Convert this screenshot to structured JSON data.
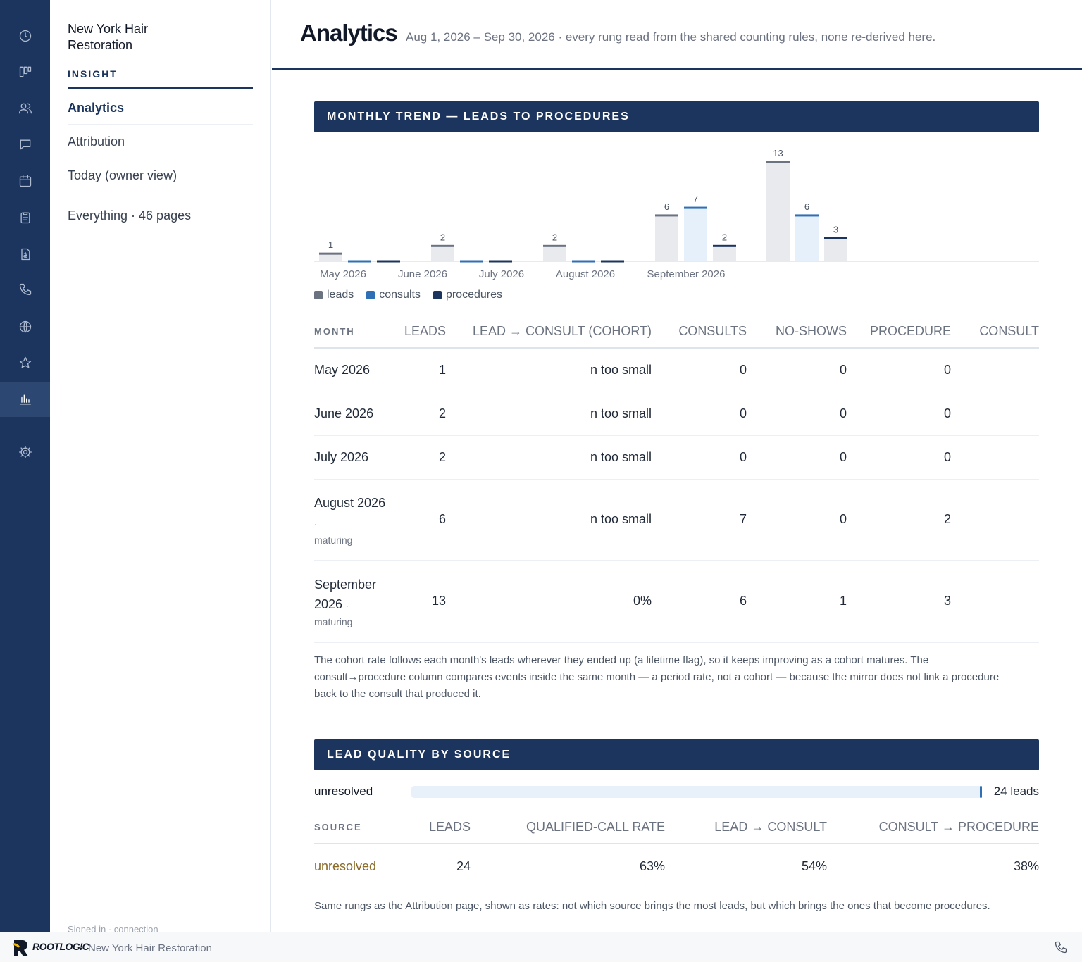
{
  "rail": {
    "items": [
      {
        "icon": "clock-icon"
      },
      {
        "icon": "kanban-icon"
      },
      {
        "icon": "users-icon"
      },
      {
        "icon": "chat-icon"
      },
      {
        "icon": "calendar-icon"
      },
      {
        "icon": "clipboard-icon"
      },
      {
        "icon": "invoice-icon"
      },
      {
        "icon": "phone-icon"
      },
      {
        "icon": "globe-icon"
      },
      {
        "icon": "star-icon"
      },
      {
        "icon": "bar-chart-icon",
        "active": true
      },
      {
        "icon": "gear-icon"
      }
    ]
  },
  "sidebar": {
    "clinic_name": "New York Hair Restoration",
    "section_label": "INSIGHT",
    "items": [
      {
        "label": "Analytics",
        "active": true
      },
      {
        "label": "Attribution"
      },
      {
        "label": "Today (owner view)"
      }
    ],
    "everything_link": "Everything · 46 pages",
    "footer_text": "Signed in · connection"
  },
  "header": {
    "title": "Analytics",
    "subtitle": "Aug 1, 2026 – Sep 30, 2026 · every rung read from the shared counting rules, none re-derived here."
  },
  "trend": {
    "banner": "MONTHLY TREND — LEADS TO PROCEDURES",
    "columns": [
      "MONTH",
      "LEADS",
      "LEAD → CONSULT (COHORT)",
      "CONSULTS",
      "NO-SHOWS",
      "PROCEDURE",
      "CONSULT"
    ],
    "rows": [
      {
        "month": "May 2026",
        "maturing": "",
        "leads": "1",
        "cohort": "n too small",
        "consults": "0",
        "noshows": "0",
        "procedure": "0",
        "consult": ""
      },
      {
        "month": "June 2026",
        "maturing": "",
        "leads": "2",
        "cohort": "n too small",
        "consults": "0",
        "noshows": "0",
        "procedure": "0",
        "consult": ""
      },
      {
        "month": "July 2026",
        "maturing": "",
        "leads": "2",
        "cohort": "n too small",
        "consults": "0",
        "noshows": "0",
        "procedure": "0",
        "consult": ""
      },
      {
        "month": "August 2026",
        "maturing": "maturing",
        "leads": "6",
        "cohort": "n too small",
        "consults": "7",
        "noshows": "0",
        "procedure": "2",
        "consult": ""
      },
      {
        "month": "September 2026",
        "maturing": "maturing",
        "leads": "13",
        "cohort": "0%",
        "consults": "6",
        "noshows": "1",
        "procedure": "3",
        "consult": ""
      }
    ],
    "note": "The cohort rate follows each month's leads wherever they ended up (a lifetime flag), so it keeps improving as a cohort matures. The consult→procedure column compares events inside the same month — a period rate, not a cohort — because the mirror does not link a procedure back to the consult that produced it."
  },
  "chart_data": {
    "type": "bar",
    "categories": [
      "May 2026",
      "June 2026",
      "July 2026",
      "August 2026",
      "September 2026"
    ],
    "series": [
      {
        "name": "leads",
        "values": [
          1,
          2,
          2,
          6,
          13
        ],
        "color": "#6b7280"
      },
      {
        "name": "consults",
        "values": [
          0,
          0,
          0,
          7,
          6
        ],
        "color": "#2e6fb5"
      },
      {
        "name": "procedures",
        "values": [
          0,
          0,
          0,
          2,
          3
        ],
        "color": "#1c355e"
      }
    ],
    "ylim": [
      0,
      13
    ],
    "legend": "bottom-left",
    "grid": false
  },
  "quality": {
    "banner": "LEAD QUALITY BY SOURCE",
    "bar_label": "unresolved",
    "bar_fraction": 1.0,
    "bar_count": "24 leads",
    "columns": [
      "SOURCE",
      "LEADS",
      "QUALIFIED-CALL RATE",
      "LEAD → CONSULT",
      "CONSULT → PROCEDURE"
    ],
    "rows": [
      {
        "source": "unresolved",
        "leads": "24",
        "qualified": "63%",
        "consult": "54%",
        "procedure": "38%"
      }
    ],
    "note": "Same rungs as the Attribution page, shown as rates: not which source brings the most leads, but which brings the ones that become procedures."
  },
  "footer": {
    "brand": "ROOTLOGIC",
    "separator": "·",
    "clinic": "New York Hair Restoration",
    "phone_icon": "phone-icon"
  },
  "colors": {
    "navy": "#1c355e",
    "accent_blue": "#2e6fb5",
    "source_link": "#8a6a26"
  }
}
